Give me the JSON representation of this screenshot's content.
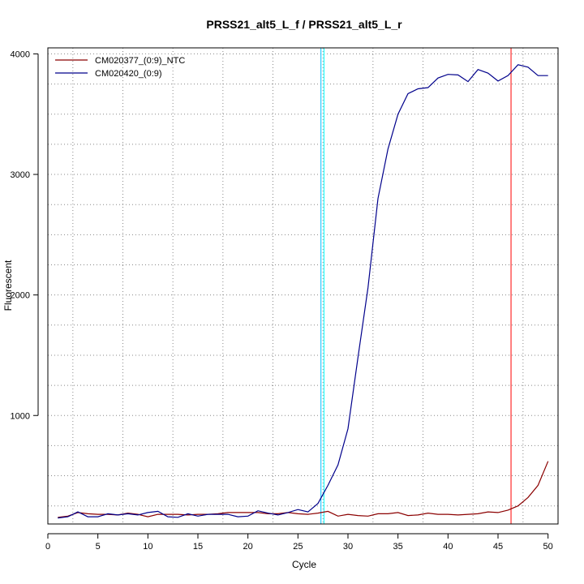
{
  "chart_data": {
    "type": "line",
    "title": "PRSS21_alt5_L_f / PRSS21_alt5_L_r",
    "xlabel": "Cycle",
    "ylabel": "Fluorescent",
    "xlim": [
      0,
      51
    ],
    "ylim": [
      100,
      4050
    ],
    "x_ticks": [
      0,
      5,
      10,
      15,
      20,
      25,
      30,
      35,
      40,
      45,
      50
    ],
    "y_ticks": [
      1000,
      2000,
      3000,
      4000
    ],
    "grid": true,
    "legend_position": "top-left",
    "x": [
      1,
      2,
      3,
      4,
      5,
      6,
      7,
      8,
      9,
      10,
      11,
      12,
      13,
      14,
      15,
      16,
      17,
      18,
      19,
      20,
      21,
      22,
      23,
      24,
      25,
      26,
      27,
      28,
      29,
      30,
      31,
      32,
      33,
      34,
      35,
      36,
      37,
      38,
      39,
      40,
      41,
      42,
      43,
      44,
      45,
      46,
      47,
      48,
      49,
      50
    ],
    "series": [
      {
        "name": "CM020377_(0:9)_NTC",
        "color": "#8b0000",
        "values": [
          155,
          165,
          195,
          185,
          180,
          180,
          175,
          190,
          180,
          160,
          180,
          180,
          180,
          175,
          180,
          180,
          185,
          195,
          195,
          195,
          195,
          185,
          185,
          195,
          185,
          180,
          190,
          205,
          165,
          180,
          170,
          165,
          185,
          185,
          195,
          170,
          175,
          190,
          180,
          180,
          175,
          180,
          185,
          200,
          195,
          215,
          250,
          320,
          420,
          620
        ]
      },
      {
        "name": "CM020420_(0:9)",
        "color": "#00008b",
        "values": [
          150,
          160,
          200,
          160,
          160,
          185,
          175,
          185,
          175,
          195,
          205,
          160,
          155,
          185,
          165,
          180,
          180,
          180,
          160,
          165,
          210,
          190,
          175,
          195,
          220,
          200,
          270,
          420,
          590,
          890,
          1480,
          2060,
          2800,
          3210,
          3500,
          3670,
          3710,
          3720,
          3800,
          3830,
          3825,
          3770,
          3870,
          3840,
          3775,
          3820,
          3910,
          3890,
          3820,
          3820
        ]
      }
    ],
    "vertical_lines": [
      {
        "x": 27.3,
        "color": "#00bfff"
      },
      {
        "x": 27.6,
        "color": "#00ffff"
      },
      {
        "x": 46.3,
        "color": "#ff0000"
      }
    ]
  }
}
